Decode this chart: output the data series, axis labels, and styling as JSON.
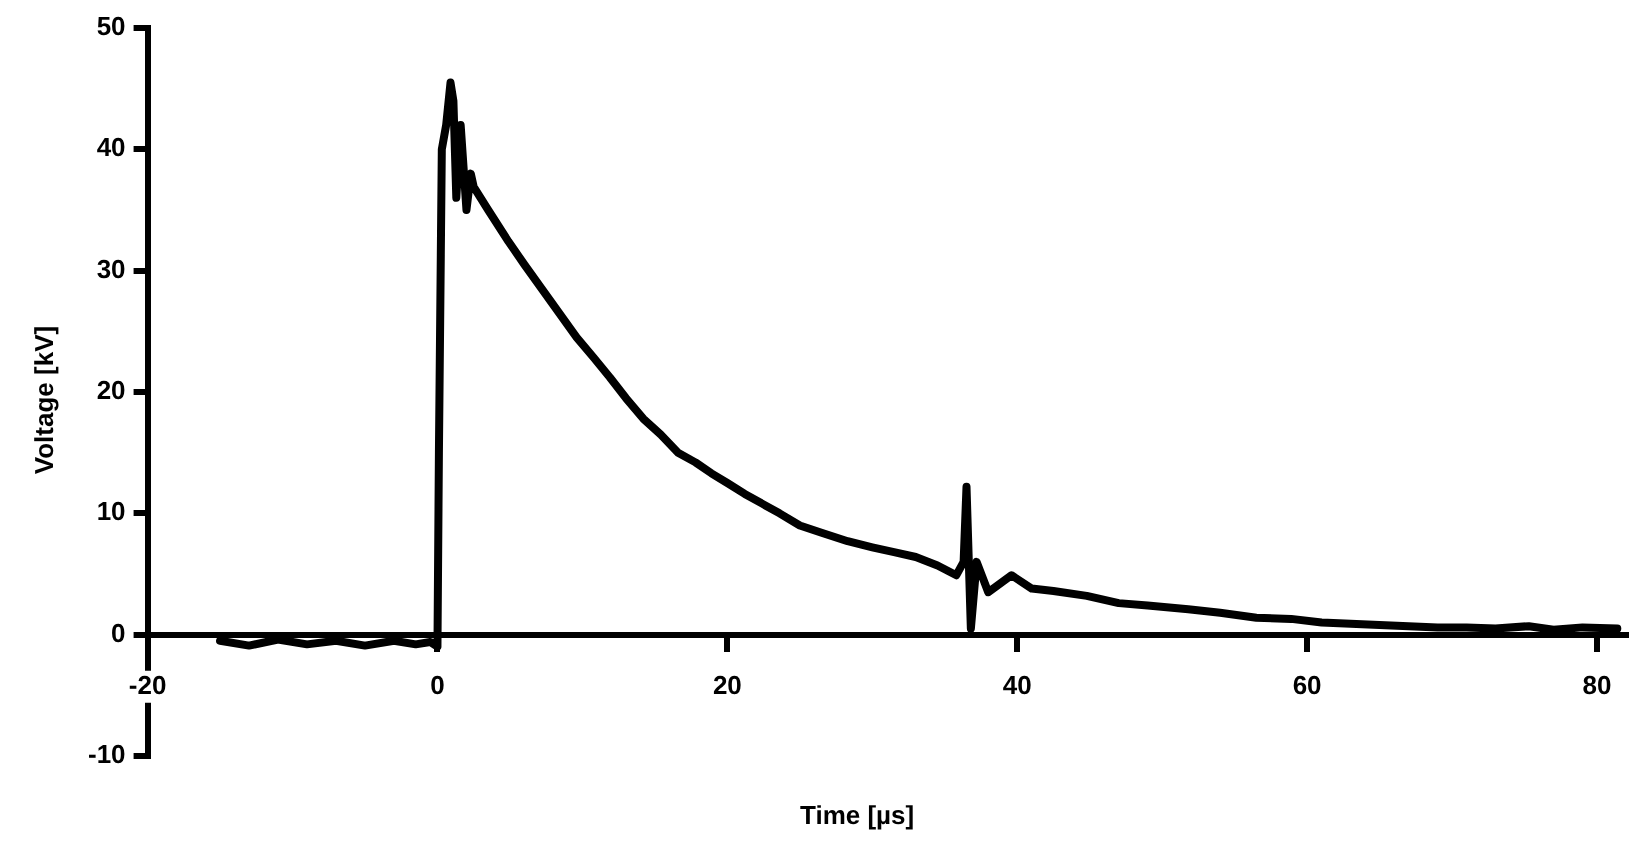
{
  "chart_data": {
    "type": "line",
    "xlabel": "Time [µs]",
    "ylabel": "Voltage [kV]",
    "xlim": [
      -20,
      82
    ],
    "xticks": [
      -20,
      0,
      20,
      40,
      60,
      80
    ],
    "ylim": [
      -10,
      50
    ],
    "yticks": [
      -10,
      0,
      10,
      20,
      30,
      40,
      50
    ],
    "grid": false,
    "legend": false,
    "marker": "none",
    "line_style": "solid",
    "series": [
      {
        "color": "#000000",
        "x": [
          -15,
          -13,
          -11,
          -9,
          -7,
          -5,
          -3,
          -1.5,
          -0.5,
          0,
          0.1,
          0.3,
          0.6,
          0.9,
          1.1,
          1.3,
          1.6,
          2,
          2.3,
          2.5,
          3.5,
          4.9,
          6,
          7.2,
          8.4,
          9.6,
          10.8,
          11.9,
          13,
          14.2,
          15.4,
          16.6,
          17.8,
          18.9,
          20,
          21.2,
          22.4,
          23.6,
          25,
          26.5,
          28.3,
          30,
          31.5,
          33,
          34.5,
          35.8,
          36.3,
          36.5,
          36.8,
          37.2,
          38,
          39.6,
          41,
          42.5,
          44.8,
          47,
          49,
          51.8,
          54,
          56.5,
          58.9,
          61,
          63,
          65,
          67,
          69,
          71,
          73,
          75.3,
          77,
          79,
          81.4
        ],
        "values": [
          -0.5,
          -0.9,
          -0.4,
          -0.8,
          -0.5,
          -0.9,
          -0.5,
          -0.8,
          -0.6,
          -1,
          15,
          40,
          42,
          45.5,
          44,
          36,
          42,
          35,
          38,
          36.9,
          35,
          32.4,
          30.5,
          28.5,
          26.5,
          24.5,
          22.8,
          21.2,
          19.5,
          17.8,
          16.5,
          15,
          14.2,
          13.3,
          12.5,
          11.6,
          10.8,
          10,
          9,
          8.4,
          7.7,
          7.2,
          6.8,
          6.4,
          5.7,
          4.9,
          6,
          12.2,
          0.5,
          6,
          3.5,
          4.9,
          3.8,
          3.6,
          3.2,
          2.6,
          2.4,
          2.1,
          1.8,
          1.4,
          1.3,
          1,
          0.9,
          0.8,
          0.7,
          0.6,
          0.6,
          0.5,
          0.7,
          0.4,
          0.6,
          0.5
        ]
      }
    ]
  }
}
